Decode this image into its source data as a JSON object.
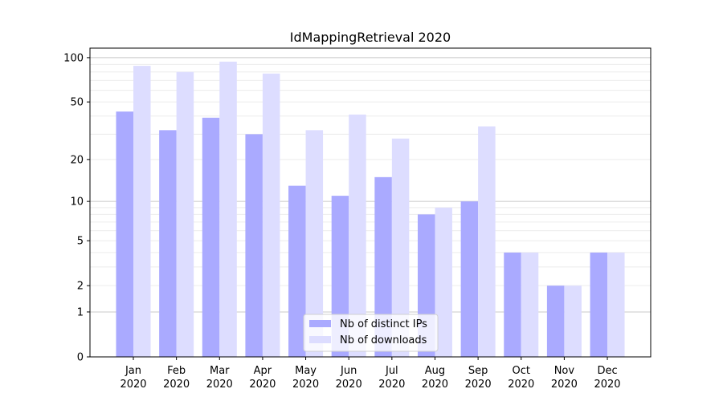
{
  "chart_data": {
    "type": "bar",
    "title": "IdMappingRetrieval 2020",
    "xlabel": "",
    "ylabel": "",
    "yscale": "log(1+y) (symlog-like)",
    "ylim": [
      0,
      116
    ],
    "yticks": [
      0,
      1,
      2,
      5,
      10,
      20,
      50,
      100
    ],
    "grid": "horizontal, major and minor",
    "legend_position": "bottom-center",
    "categories": [
      "Jan\n2020",
      "Feb\n2020",
      "Mar\n2020",
      "Apr\n2020",
      "May\n2020",
      "Jun\n2020",
      "Jul\n2020",
      "Aug\n2020",
      "Sep\n2020",
      "Oct\n2020",
      "Nov\n2020",
      "Dec\n2020"
    ],
    "series": [
      {
        "name": "Nb of distinct IPs",
        "color": "#aaaaff",
        "values": [
          43,
          32,
          39,
          30,
          13,
          11,
          15,
          8,
          10,
          4,
          2,
          4
        ]
      },
      {
        "name": "Nb of downloads",
        "color": "#ddddff",
        "values": [
          88,
          80,
          94,
          78,
          32,
          41,
          28,
          9,
          34,
          4,
          2,
          4
        ]
      }
    ]
  }
}
